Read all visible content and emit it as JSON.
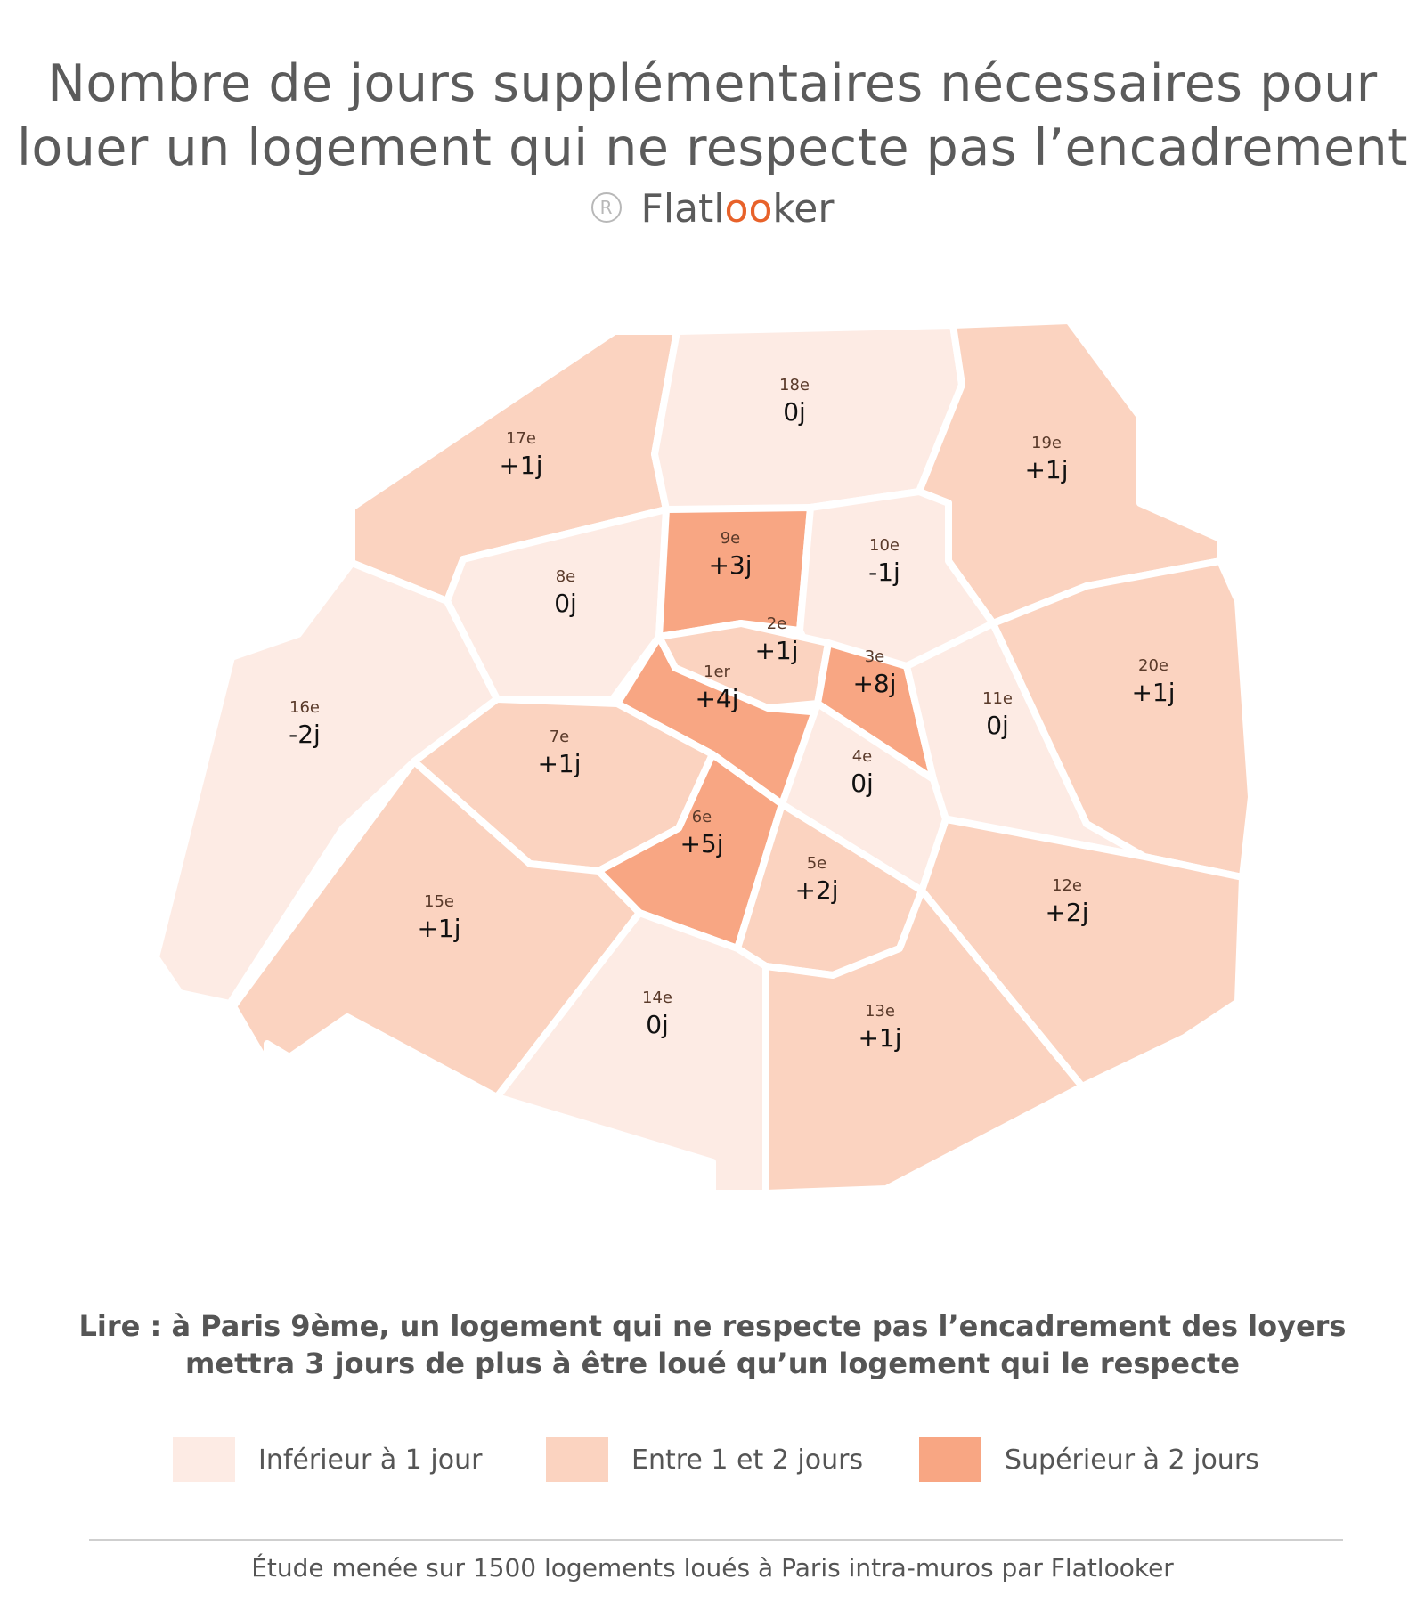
{
  "title": {
    "line1": "Nombre de jours supplémentaires nécessaires pour",
    "line2": "louer un logement qui ne respecte pas l’encadrement"
  },
  "brand": {
    "registered": "R",
    "pre": "Flatl",
    "oo": "oo",
    "post": "ker"
  },
  "colors": {
    "low": "#fdebe4",
    "mid": "#fbd3c0",
    "high": "#f8a683",
    "border": "#ffffff",
    "brand_accent": "#e8622a"
  },
  "districts": [
    {
      "id": "17",
      "name": "17e",
      "value": "+1j",
      "category": "mid"
    },
    {
      "id": "18",
      "name": "18e",
      "value": "0j",
      "category": "low"
    },
    {
      "id": "19",
      "name": "19e",
      "value": "+1j",
      "category": "mid"
    },
    {
      "id": "8",
      "name": "8e",
      "value": "0j",
      "category": "low"
    },
    {
      "id": "9",
      "name": "9e",
      "value": "+3j",
      "category": "high"
    },
    {
      "id": "10",
      "name": "10e",
      "value": "-1j",
      "category": "low"
    },
    {
      "id": "16",
      "name": "16e",
      "value": "-2j",
      "category": "low"
    },
    {
      "id": "2",
      "name": "2e",
      "value": "+1j",
      "category": "mid"
    },
    {
      "id": "1",
      "name": "1er",
      "value": "+4j",
      "category": "high"
    },
    {
      "id": "3",
      "name": "3e",
      "value": "+8j",
      "category": "high"
    },
    {
      "id": "11",
      "name": "11e",
      "value": "0j",
      "category": "low"
    },
    {
      "id": "20",
      "name": "20e",
      "value": "+1j",
      "category": "mid"
    },
    {
      "id": "7",
      "name": "7e",
      "value": "+1j",
      "category": "mid"
    },
    {
      "id": "4",
      "name": "4e",
      "value": "0j",
      "category": "low"
    },
    {
      "id": "6",
      "name": "6e",
      "value": "+5j",
      "category": "high"
    },
    {
      "id": "5",
      "name": "5e",
      "value": "+2j",
      "category": "mid"
    },
    {
      "id": "12",
      "name": "12e",
      "value": "+2j",
      "category": "mid"
    },
    {
      "id": "15",
      "name": "15e",
      "value": "+1j",
      "category": "mid"
    },
    {
      "id": "14",
      "name": "14e",
      "value": "0j",
      "category": "low"
    },
    {
      "id": "13",
      "name": "13e",
      "value": "+1j",
      "category": "mid"
    }
  ],
  "reading": {
    "line1": "Lire : à Paris 9ème, un logement qui ne respecte pas l’encadrement des loyers",
    "line2": "mettra 3 jours de plus à être loué qu’un logement qui le respecte"
  },
  "legend": [
    {
      "label": "Inférieur à 1 jour",
      "category": "low"
    },
    {
      "label": "Entre 1 et 2 jours",
      "category": "mid"
    },
    {
      "label": "Supérieur à 2 jours",
      "category": "high"
    }
  ],
  "footer": "Étude menée sur 1500 logements loués à Paris intra-muros par Flatlooker"
}
